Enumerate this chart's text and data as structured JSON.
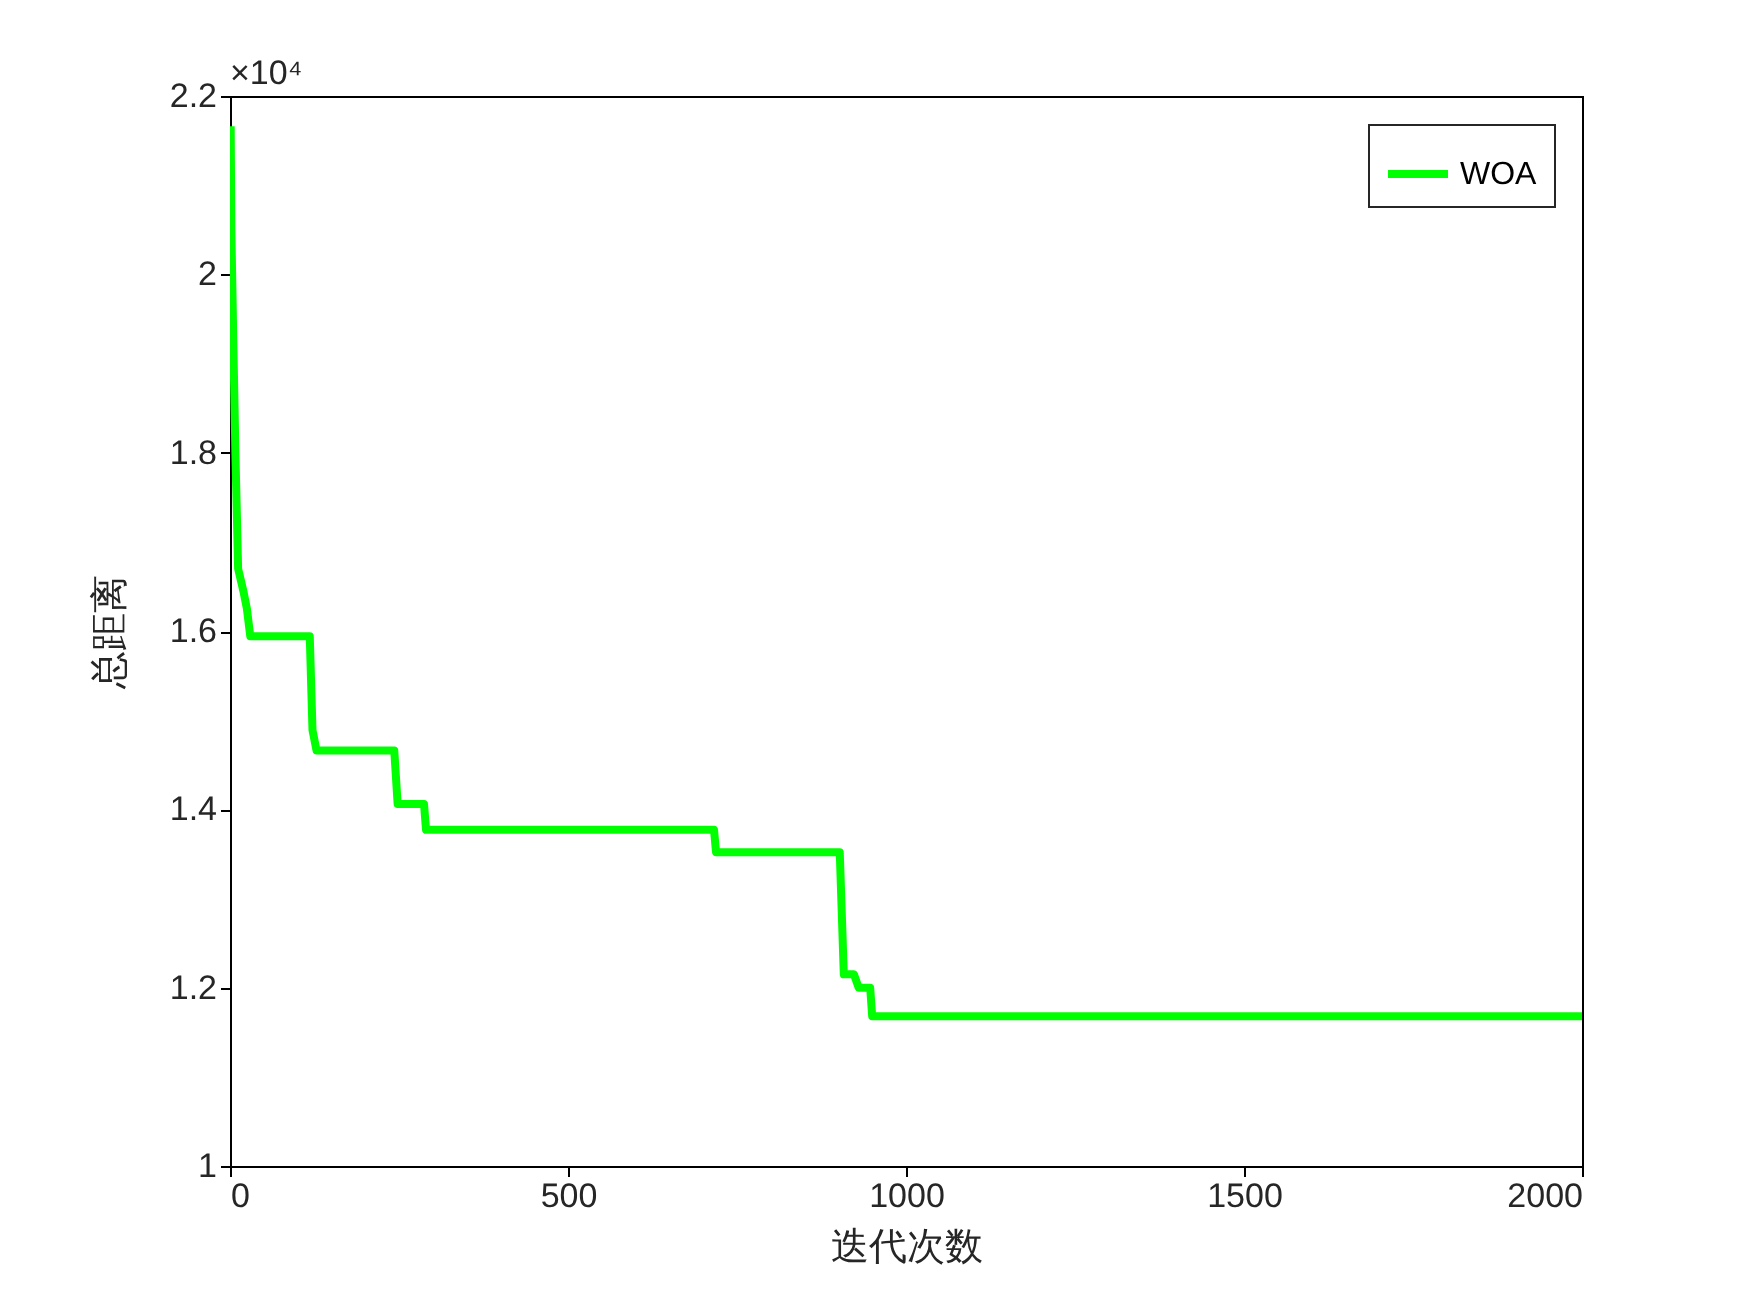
{
  "chart_data": {
    "type": "line",
    "xlabel": "迭代次数",
    "ylabel": "总距离",
    "annotations": [
      "×10⁴"
    ],
    "x": [
      1,
      2,
      5,
      8,
      12,
      20,
      25,
      30,
      118,
      122,
      128,
      243,
      248,
      287,
      290,
      716,
      719,
      902,
      908,
      923,
      930,
      947,
      950,
      2000
    ],
    "series": [
      {
        "name": "WOA",
        "color": "#00ff00",
        "values": [
          2.166,
          2.05,
          1.92,
          1.8,
          1.67,
          1.644,
          1.625,
          1.594,
          1.594,
          1.489,
          1.466,
          1.466,
          1.406,
          1.406,
          1.377,
          1.377,
          1.352,
          1.352,
          1.215,
          1.215,
          1.2,
          1.2,
          1.168,
          1.168
        ]
      }
    ],
    "xlim": [
      0,
      2000
    ],
    "xticks": [
      0,
      500,
      1000,
      1500,
      2000
    ],
    "ylim": [
      1,
      2.2
    ],
    "yticks": [
      1,
      1.2,
      1.4,
      1.6,
      1.8,
      2,
      2.2
    ],
    "legend": "top right",
    "line_style": "solid"
  }
}
